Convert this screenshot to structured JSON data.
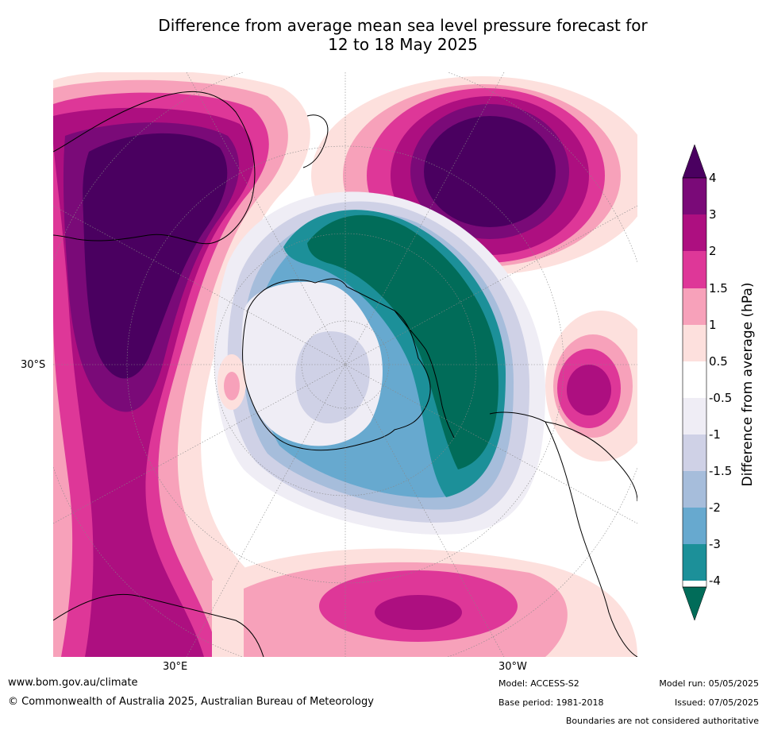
{
  "title": {
    "line1": "Difference from average mean sea level pressure forecast for",
    "line2": "12 to 18 May 2025"
  },
  "map": {
    "projection_labels": {
      "lat_label": "30°S",
      "lon_label_left": "30°E",
      "lon_label_right": "30°W"
    },
    "colors": {
      "ocean_neutral": "#ffffff",
      "land_outline": "#000000",
      "grid": "#888888"
    }
  },
  "colorbar": {
    "label": "Difference from average (hPa)",
    "ticks": [
      "4",
      "3",
      "2",
      "1.5",
      "1",
      "0.5",
      "-0.5",
      "-1",
      "-1.5",
      "-2",
      "-3",
      "-4"
    ],
    "bins": [
      {
        "range": ">4",
        "color": "#4a0060"
      },
      {
        "range": "3 to 4",
        "color": "#7a0a78"
      },
      {
        "range": "2 to 3",
        "color": "#ad0f80"
      },
      {
        "range": "1.5 to 2",
        "color": "#de3798"
      },
      {
        "range": "1 to 1.5",
        "color": "#f7a1ba"
      },
      {
        "range": "0.5 to 1",
        "color": "#fde0dd"
      },
      {
        "range": "-0.5 to 0.5",
        "color": "#ffffff"
      },
      {
        "range": "-1 to -0.5",
        "color": "#efedf5"
      },
      {
        "range": "-1.5 to -1",
        "color": "#cfd1e6"
      },
      {
        "range": "-2 to -1.5",
        "color": "#a6bddb"
      },
      {
        "range": "-3 to -2",
        "color": "#67a9cf"
      },
      {
        "range": "-4 to -3",
        "color": "#1c9099"
      },
      {
        "range": "<-4",
        "color": "#016c59"
      }
    ]
  },
  "footer": {
    "url": "www.bom.gov.au/climate",
    "copyright": "© Commonwealth of Australia 2025, Australian Bureau of Meteorology",
    "model": "Model: ACCESS-S2",
    "base_period": "Base period: 1981-2018",
    "model_run": "Model run: 05/05/2025",
    "issued": "Issued: 07/05/2025",
    "disclaimer": "Boundaries are not considered authoritative"
  }
}
